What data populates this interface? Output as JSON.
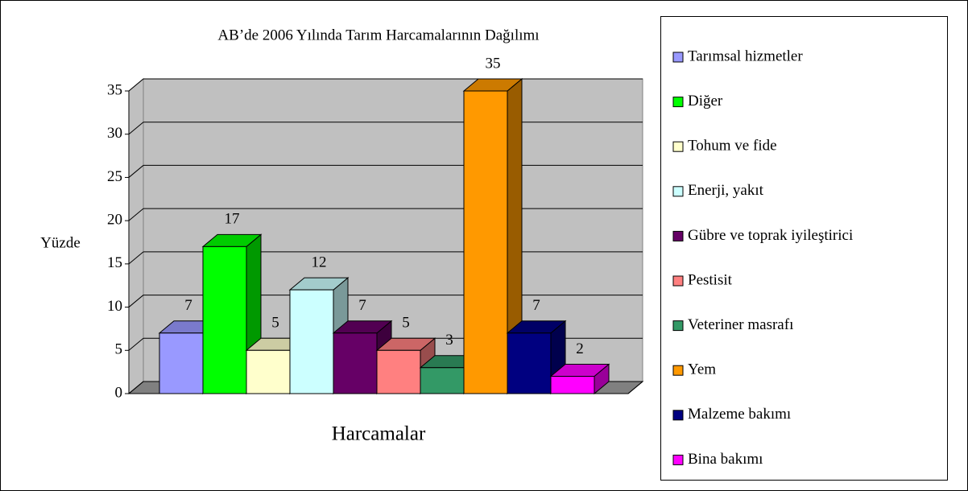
{
  "chart_data": {
    "type": "bar",
    "title": "AB’de 2006 Yılında Tarım Harcamalarının Dağılımı",
    "y_label": "Yüzde",
    "x_label": "Harcamalar",
    "ylim": [
      0,
      35
    ],
    "yticks": [
      0,
      5,
      10,
      15,
      20,
      25,
      30,
      35
    ],
    "grid": true,
    "legend": "right",
    "series": [
      {
        "name": "Tarımsal hizmetler",
        "color": "#9999ff",
        "values": [
          7
        ]
      },
      {
        "name": "Diğer",
        "color": "#00ff00",
        "values": [
          17
        ]
      },
      {
        "name": "Tohum ve fide",
        "color": "#ffffcc",
        "values": [
          5
        ]
      },
      {
        "name": "Enerji, yakıt",
        "color": "#ccffff",
        "values": [
          12
        ]
      },
      {
        "name": "Gübre ve toprak iyileştirici",
        "color": "#660066",
        "values": [
          7
        ]
      },
      {
        "name": "Pestisit",
        "color": "#ff8080",
        "values": [
          5
        ]
      },
      {
        "name": "Veteriner masrafı",
        "color": "#339966",
        "values": [
          3
        ]
      },
      {
        "name": "Yem",
        "color": "#ff9900",
        "values": [
          35
        ]
      },
      {
        "name": "Malzeme bakımı",
        "color": "#000080",
        "values": [
          7
        ]
      },
      {
        "name": "Bina bakımı",
        "color": "#ff00ff",
        "values": [
          2
        ]
      }
    ]
  }
}
